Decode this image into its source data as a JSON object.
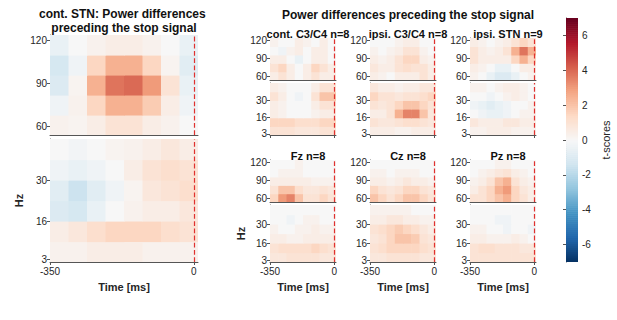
{
  "chart_data": {
    "type": "heatmap",
    "title": "Power differences preceding the stop signal",
    "xlim": [
      -350,
      10
    ],
    "xticks": [
      -350,
      0
    ],
    "stop_signal": 0,
    "time_bins": [
      -350,
      -305,
      -260,
      -215,
      -170,
      -125,
      -80,
      -35,
      10
    ],
    "bands": [
      {
        "ylim": [
          54,
          124
        ],
        "yticks": [
          60,
          90,
          120
        ],
        "freq_bins": [
          54,
          68,
          82,
          96,
          110,
          124
        ]
      },
      {
        "ylim": [
          2,
          44
        ],
        "yticks": [
          3,
          16,
          30
        ],
        "freq_bins": [
          2,
          9,
          16,
          23,
          30,
          37,
          44
        ]
      }
    ],
    "colorbar": {
      "label": "t-scores",
      "range": [
        -7,
        7
      ],
      "ticks": [
        -6,
        -4,
        -2,
        0,
        2,
        4,
        6
      ]
    },
    "panels": [
      {
        "title": "cont. STN: Power differences preceding the stop signal",
        "xlabel": "Time [ms]",
        "ylabel": "Hz",
        "cells": [
          [
            [
              0.3,
              0.2,
              0.5,
              1,
              1,
              0.5,
              0.3,
              0
            ],
            [
              -0.3,
              0.3,
              1.5,
              2.5,
              2.5,
              1.8,
              0.5,
              -0.3
            ],
            [
              -1,
              0.2,
              2.5,
              3.8,
              4,
              3,
              1,
              -0.5
            ],
            [
              -1.2,
              -0.3,
              1.5,
              2.5,
              2.5,
              1.5,
              0.2,
              -0.8
            ],
            [
              -0.5,
              0,
              0.3,
              0.5,
              0.5,
              0.3,
              0,
              -0.5
            ]
          ],
          [
            [
              0.3,
              0.3,
              0.5,
              0.5,
              0.5,
              0.3,
              0.3,
              0.3
            ],
            [
              0.5,
              0.8,
              1.2,
              1.5,
              1.5,
              1.5,
              1.2,
              1
            ],
            [
              -1,
              -1.2,
              -0.5,
              0,
              0.3,
              0.5,
              0.5,
              0.8
            ],
            [
              -0.8,
              -1.5,
              -0.8,
              -0.3,
              0.2,
              0.8,
              1,
              1.2
            ],
            [
              -0.3,
              -0.5,
              -0.3,
              0,
              0.5,
              1,
              1.2,
              1
            ],
            [
              0,
              -0.2,
              0,
              0.2,
              0.3,
              0.5,
              0.8,
              0.5
            ]
          ]
        ]
      },
      {
        "title": "cont. C3/C4 n=8",
        "tick_labels": "y",
        "cells": [
          [
            [
              0.5,
              1,
              0.5,
              0,
              0.5,
              1,
              0.5,
              0.5
            ],
            [
              1,
              1.5,
              0.5,
              0,
              0.5,
              1.5,
              1,
              0.5
            ],
            [
              0.5,
              0.5,
              0,
              -0.5,
              0,
              0.5,
              0.5,
              0
            ],
            [
              0,
              -0.3,
              0.3,
              0.5,
              0,
              0.5,
              0.5,
              0
            ],
            [
              0.3,
              0,
              0,
              0.5,
              0.3,
              0,
              0.5,
              0
            ]
          ],
          [
            [
              1,
              1,
              1,
              0.8,
              0.8,
              0.8,
              1,
              1
            ],
            [
              1.5,
              1.5,
              1.5,
              1.2,
              1.2,
              1.2,
              1.5,
              1.5
            ],
            [
              0.5,
              0.3,
              0,
              0,
              0,
              0.3,
              0.5,
              0.5
            ],
            [
              0.5,
              0.3,
              0,
              0,
              0,
              0.5,
              1,
              1
            ],
            [
              1,
              0.5,
              0,
              -0.3,
              0,
              1,
              2,
              2
            ],
            [
              0.5,
              0.3,
              0,
              0,
              0,
              0.5,
              1,
              1
            ]
          ]
        ]
      },
      {
        "title": "ipsi. C3/C4 n=8",
        "tick_labels": "y",
        "cells": [
          [
            [
              0.5,
              0.3,
              0,
              0.5,
              0.5,
              0.5,
              1,
              0.5
            ],
            [
              0.8,
              0.5,
              0.5,
              1,
              1.2,
              1,
              1,
              0.5
            ],
            [
              0.5,
              0.3,
              0.5,
              1,
              1.5,
              1.5,
              0.5,
              0.3
            ],
            [
              0.3,
              0,
              0.3,
              0.5,
              1,
              1,
              0.3,
              0
            ],
            [
              0,
              0,
              0,
              0.3,
              0.5,
              0.5,
              0,
              0
            ]
          ],
          [
            [
              0.5,
              0.5,
              0.5,
              0.3,
              0.3,
              0.5,
              0.5,
              0.5
            ],
            [
              1,
              0.8,
              0.8,
              1,
              1.2,
              1.2,
              1,
              0.8
            ],
            [
              0.5,
              0.5,
              1,
              2.5,
              3.5,
              3.5,
              2,
              0.8
            ],
            [
              1,
              0.8,
              1,
              1.5,
              2,
              2,
              1.5,
              1
            ],
            [
              1.5,
              1,
              1,
              0.8,
              1,
              1,
              1.2,
              1.5
            ],
            [
              0.8,
              0.5,
              0.5,
              0.3,
              0.5,
              0.5,
              0.8,
              0.8
            ]
          ]
        ]
      },
      {
        "title": "ipsi. STN n=9",
        "tick_labels": "y",
        "cells": [
          [
            [
              0.3,
              0,
              -0.5,
              -1,
              -1,
              -0.5,
              0,
              0.3
            ],
            [
              0.5,
              0.3,
              0,
              -0.5,
              -0.5,
              0,
              0.5,
              0.5
            ],
            [
              1,
              0.5,
              0.5,
              0.5,
              0.5,
              1.5,
              2.5,
              1.5
            ],
            [
              1,
              0.5,
              0.3,
              0.5,
              1,
              2.5,
              3.8,
              2.5
            ],
            [
              0.5,
              0.3,
              0,
              0.3,
              0.5,
              1,
              1.5,
              1
            ]
          ],
          [
            [
              0.3,
              0.3,
              0.5,
              0.5,
              0.5,
              0.3,
              0.3,
              0.3
            ],
            [
              0.8,
              0.5,
              0.5,
              0.5,
              0.8,
              0.8,
              0.5,
              0.5
            ],
            [
              0,
              -0.3,
              -0.5,
              -0.5,
              -0.3,
              0,
              0.3,
              0.3
            ],
            [
              -0.3,
              -0.5,
              -0.8,
              -0.5,
              -0.3,
              0,
              0,
              0.3
            ],
            [
              0,
              0,
              -0.3,
              0,
              0.3,
              0.5,
              0.3,
              0
            ],
            [
              0.3,
              0.3,
              0,
              0.3,
              0.5,
              0.5,
              0.3,
              0
            ]
          ]
        ]
      },
      {
        "title": "Fz n=8",
        "xlabel": "Time [ms]",
        "ylabel": "Hz",
        "cells": [
          [
            [
              1.5,
              3,
              3.5,
              2,
              1,
              1,
              1.5,
              1
            ],
            [
              1,
              2,
              2,
              1.2,
              0.8,
              0.8,
              1,
              0.8
            ],
            [
              0.5,
              0.5,
              0.5,
              0.5,
              0.5,
              0.3,
              0.3,
              0.3
            ],
            [
              0,
              0.3,
              0.3,
              0.3,
              0,
              0,
              0,
              0
            ],
            [
              0,
              0,
              0,
              0.3,
              0,
              0,
              0,
              0
            ]
          ],
          [
            [
              0.8,
              0.8,
              1,
              1,
              1,
              1,
              0.8,
              0.8
            ],
            [
              1,
              1.2,
              1.2,
              1.2,
              1.2,
              1.5,
              1.2,
              1
            ],
            [
              0.5,
              0.5,
              0.3,
              0.3,
              0.5,
              0.5,
              0.5,
              0.5
            ],
            [
              0.3,
              0,
              0,
              0.3,
              0.3,
              0.5,
              0.3,
              0.3
            ],
            [
              0,
              0,
              -0.3,
              0,
              0.3,
              0.3,
              0,
              0
            ],
            [
              0,
              0,
              0,
              0,
              0,
              0,
              0,
              0
            ]
          ]
        ]
      },
      {
        "title": "Cz n=8",
        "xlabel": "Time [ms]",
        "cells": [
          [
            [
              2,
              1.5,
              1,
              1.5,
              2,
              2,
              1.5,
              1
            ],
            [
              1.5,
              1,
              0.8,
              1,
              1.5,
              1.5,
              1,
              0.8
            ],
            [
              0.5,
              0.5,
              0.3,
              0.5,
              0.8,
              0.5,
              0.5,
              0.3
            ],
            [
              0.3,
              0.3,
              0,
              0.3,
              0.3,
              0.3,
              0,
              0
            ],
            [
              0,
              0,
              0,
              0,
              0,
              0,
              0,
              0
            ]
          ],
          [
            [
              0.8,
              0.8,
              1,
              1,
              1,
              1,
              0.8,
              0.8
            ],
            [
              1,
              1.2,
              1.5,
              1.5,
              1.5,
              1.5,
              1.2,
              1
            ],
            [
              0.8,
              1,
              1.5,
              2,
              2,
              1.8,
              1,
              0.8
            ],
            [
              1,
              1.2,
              1.5,
              1.8,
              1.5,
              1.2,
              0.8,
              0.5
            ],
            [
              0.5,
              0.5,
              0.8,
              0.8,
              0.5,
              0.5,
              0.3,
              0.3
            ],
            [
              0.3,
              0.3,
              0.3,
              0.3,
              0.3,
              0,
              0,
              0
            ]
          ]
        ]
      },
      {
        "title": "Pz n=8",
        "xlabel": "Time [ms]",
        "cells": [
          [
            [
              1,
              1,
              1.5,
              2,
              2.5,
              1.5,
              1,
              0.5
            ],
            [
              0.5,
              1,
              1.5,
              2.5,
              3,
              1.5,
              0.8,
              0.5
            ],
            [
              0.3,
              0.5,
              1,
              2,
              2.5,
              1,
              0.5,
              0.3
            ],
            [
              0,
              0.3,
              0.5,
              0.8,
              1,
              0.5,
              0.3,
              0
            ],
            [
              0,
              0,
              0,
              0.3,
              0.3,
              0,
              0,
              0
            ]
          ],
          [
            [
              1,
              1,
              1,
              1,
              1,
              1,
              1,
              1
            ],
            [
              1,
              1.2,
              1.2,
              1,
              1,
              1,
              0.8,
              0.8
            ],
            [
              0.5,
              0.5,
              0.3,
              0.3,
              0.3,
              0.5,
              0.3,
              0
            ],
            [
              0.3,
              0.3,
              0,
              0,
              -0.3,
              0,
              0,
              -0.3
            ],
            [
              0,
              0,
              0,
              -0.3,
              -0.3,
              0,
              0,
              0
            ],
            [
              0,
              0,
              0,
              0,
              0,
              0,
              0,
              0
            ]
          ]
        ]
      }
    ]
  }
}
